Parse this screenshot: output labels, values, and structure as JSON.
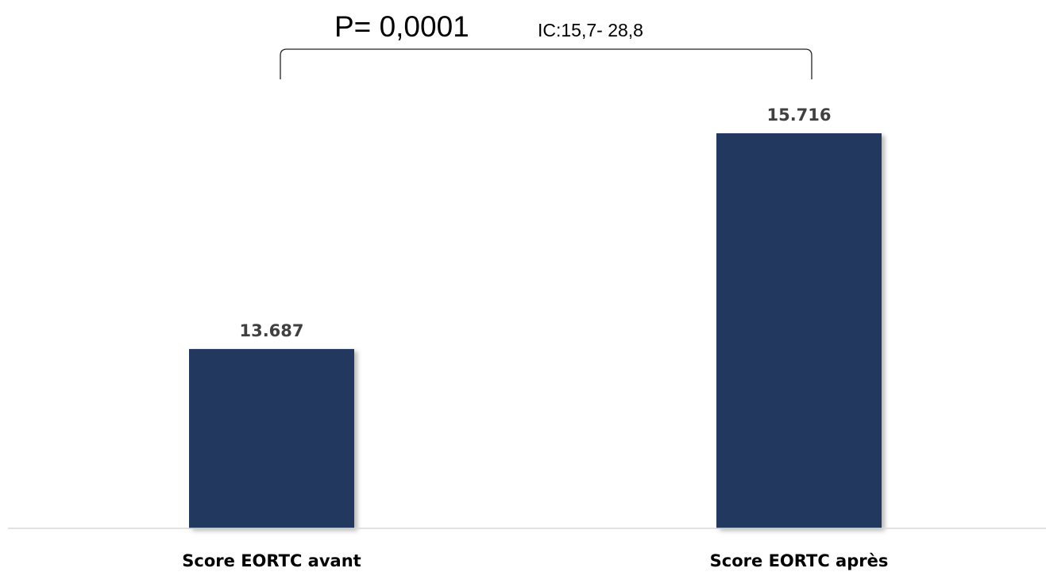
{
  "chart_data": {
    "type": "bar",
    "categories": [
      "Score EORTC avant",
      "Score EORTC après"
    ],
    "values": [
      13.687,
      15.716
    ],
    "value_labels": [
      "13.687",
      "15.716"
    ],
    "ylim": [
      12.0,
      16.1
    ],
    "grid": false,
    "annotation": {
      "p_value": "P= 0,0001",
      "ci": "IC:15,7- 28,8"
    },
    "colors": {
      "bar": "#22385f",
      "value_label": "#404040",
      "axis": "#d9d9d9"
    }
  }
}
